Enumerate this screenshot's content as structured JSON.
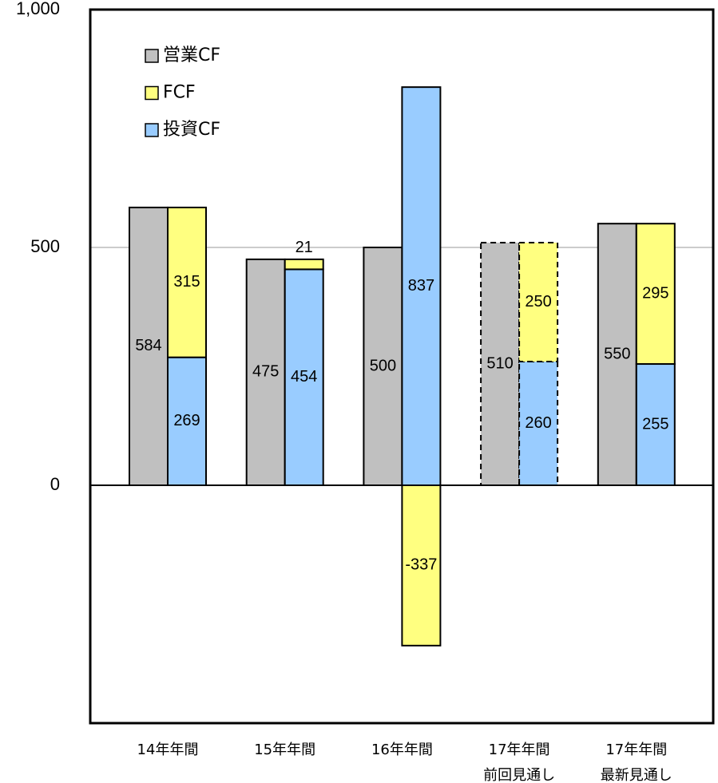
{
  "chart_data": {
    "type": "bar",
    "categories": [
      [
        "14年年間"
      ],
      [
        "15年年間"
      ],
      [
        "16年年間"
      ],
      [
        "17年年間",
        "前回見通し"
      ],
      [
        "17年年間",
        "最新見通し"
      ]
    ],
    "series": [
      {
        "name": "営業CF",
        "color": "#c0c0c0",
        "values": [
          584,
          475,
          500,
          510,
          550
        ]
      },
      {
        "name": "FCF",
        "color": "#ffff80",
        "values": [
          315,
          21,
          -337,
          250,
          295
        ]
      },
      {
        "name": "投資CF",
        "color": "#99ccff",
        "values": [
          269,
          454,
          837,
          260,
          255
        ]
      }
    ],
    "ylim": [
      -500,
      1000
    ],
    "yticks": [
      0,
      500,
      {
        "value": 1000,
        "label": "1,000"
      }
    ],
    "grid": true,
    "legend": "top-left",
    "dashed_category_indices": [
      3
    ]
  }
}
